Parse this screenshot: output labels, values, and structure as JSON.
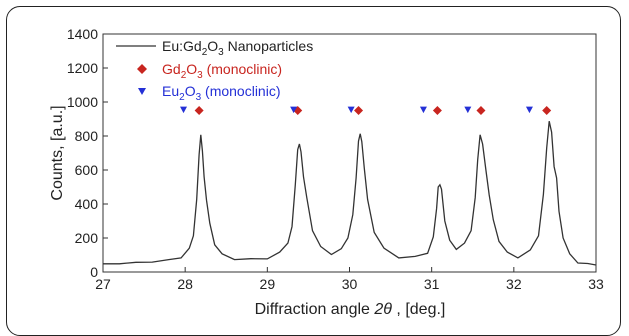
{
  "chart_data": {
    "type": "line",
    "title": "",
    "xlabel_prefix": "Diffraction angle ",
    "xlabel_symbol": "2θ",
    "xlabel_suffix": " , [deg.]",
    "ylabel": "Counts, [a.u.]",
    "xlim": [
      27,
      33
    ],
    "ylim": [
      0,
      1400
    ],
    "xticks": [
      "27",
      "28",
      "29",
      "30",
      "31",
      "32",
      "33"
    ],
    "yticks": [
      "0",
      "200",
      "400",
      "600",
      "800",
      "1000",
      "1200",
      "1400"
    ],
    "legend_position": "top-left",
    "series": [
      {
        "kind": "line",
        "legend": {
          "base": "Eu:Gd",
          "sub1": "2",
          "mid": "O",
          "sub2": "3",
          "tail": " Nanoparticles"
        },
        "color": "#333333",
        "points": [
          [
            27.0,
            48
          ],
          [
            27.2,
            55
          ],
          [
            27.4,
            50
          ],
          [
            27.6,
            58
          ],
          [
            27.8,
            66
          ],
          [
            27.95,
            90
          ],
          [
            28.05,
            140
          ],
          [
            28.1,
            220
          ],
          [
            28.14,
            420
          ],
          [
            28.17,
            690
          ],
          [
            28.19,
            800
          ],
          [
            28.21,
            720
          ],
          [
            28.23,
            560
          ],
          [
            28.26,
            430
          ],
          [
            28.3,
            280
          ],
          [
            28.36,
            160
          ],
          [
            28.45,
            100
          ],
          [
            28.6,
            80
          ],
          [
            28.8,
            78
          ],
          [
            29.0,
            84
          ],
          [
            29.15,
            110
          ],
          [
            29.25,
            170
          ],
          [
            29.3,
            260
          ],
          [
            29.34,
            520
          ],
          [
            29.37,
            720
          ],
          [
            29.39,
            760
          ],
          [
            29.41,
            700
          ],
          [
            29.44,
            560
          ],
          [
            29.48,
            430
          ],
          [
            29.55,
            250
          ],
          [
            29.65,
            150
          ],
          [
            29.78,
            110
          ],
          [
            29.9,
            130
          ],
          [
            29.98,
            200
          ],
          [
            30.04,
            330
          ],
          [
            30.08,
            560
          ],
          [
            30.11,
            770
          ],
          [
            30.13,
            820
          ],
          [
            30.15,
            760
          ],
          [
            30.18,
            610
          ],
          [
            30.22,
            420
          ],
          [
            30.3,
            240
          ],
          [
            30.42,
            140
          ],
          [
            30.6,
            90
          ],
          [
            30.8,
            85
          ],
          [
            30.95,
            110
          ],
          [
            31.02,
            200
          ],
          [
            31.06,
            380
          ],
          [
            31.08,
            500
          ],
          [
            31.1,
            520
          ],
          [
            31.12,
            480
          ],
          [
            31.16,
            300
          ],
          [
            31.22,
            180
          ],
          [
            31.3,
            140
          ],
          [
            31.4,
            170
          ],
          [
            31.48,
            250
          ],
          [
            31.53,
            430
          ],
          [
            31.56,
            660
          ],
          [
            31.59,
            800
          ],
          [
            31.62,
            760
          ],
          [
            31.66,
            600
          ],
          [
            31.7,
            460
          ],
          [
            31.75,
            300
          ],
          [
            31.82,
            180
          ],
          [
            31.92,
            110
          ],
          [
            32.05,
            90
          ],
          [
            32.2,
            130
          ],
          [
            32.3,
            220
          ],
          [
            32.36,
            450
          ],
          [
            32.4,
            730
          ],
          [
            32.43,
            880
          ],
          [
            32.46,
            830
          ],
          [
            32.49,
            620
          ],
          [
            32.52,
            560
          ],
          [
            32.55,
            350
          ],
          [
            32.6,
            200
          ],
          [
            32.68,
            100
          ],
          [
            32.78,
            60
          ],
          [
            32.9,
            50
          ],
          [
            33.0,
            48
          ]
        ]
      },
      {
        "kind": "marker",
        "marker": "diamond",
        "legend": {
          "base": "Gd",
          "sub1": "2",
          "mid": "O",
          "sub2": "3",
          "tail": " (monoclinic)"
        },
        "color": "#c8251f",
        "x": [
          28.17,
          29.37,
          30.11,
          31.07,
          31.6,
          32.4
        ],
        "y": 950
      },
      {
        "kind": "marker",
        "marker": "triangle-down",
        "legend": {
          "base": "Eu",
          "sub1": "2",
          "mid": "O",
          "sub2": "3",
          "tail": " (monoclinic)"
        },
        "color": "#2430d6",
        "x": [
          27.98,
          29.32,
          30.02,
          30.9,
          31.44,
          32.19
        ],
        "y": 955
      }
    ]
  }
}
